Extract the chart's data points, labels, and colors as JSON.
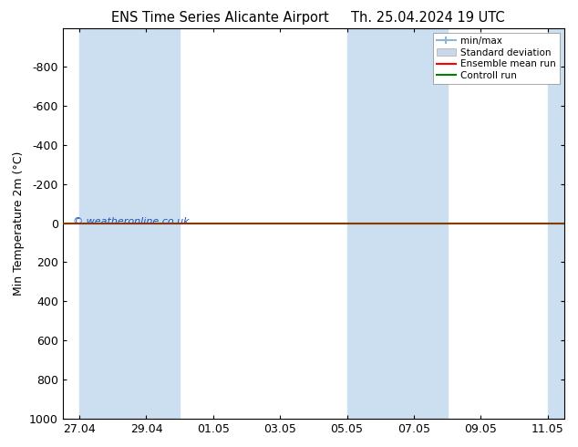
{
  "title_left": "ENS Time Series Alicante Airport",
  "title_right": "Th. 25.04.2024 19 UTC",
  "ylabel": "Min Temperature 2m (°C)",
  "ylim_top": -1000,
  "ylim_bottom": 1000,
  "yticks": [
    -800,
    -600,
    -400,
    -200,
    0,
    200,
    400,
    600,
    800,
    1000
  ],
  "x_tick_labels": [
    "27.04",
    "29.04",
    "01.05",
    "03.05",
    "05.05",
    "07.05",
    "09.05",
    "11.05"
  ],
  "x_tick_pos": [
    0,
    1,
    2,
    3,
    4,
    5,
    6,
    7
  ],
  "xlim": [
    -0.25,
    7.25
  ],
  "shaded_bands": [
    [
      0.0,
      0.5
    ],
    [
      1.0,
      1.5
    ],
    [
      4.0,
      4.5
    ],
    [
      5.0,
      5.5
    ],
    [
      7.0,
      7.25
    ]
  ],
  "ensemble_mean_y": 0,
  "control_run_y": 0,
  "watermark": "© weatheronline.co.uk",
  "legend_items": [
    "min/max",
    "Standard deviation",
    "Ensemble mean run",
    "Controll run"
  ],
  "minmax_color": "#ccdff0",
  "std_color": "#d8e8f4",
  "ensemble_color": "#ff0000",
  "control_color": "#008000",
  "background_color": "#ffffff",
  "plot_bg_color": "#ffffff",
  "shade_color": "#ccdff0",
  "font_color": "#000000",
  "watermark_color": "#1a4fb0"
}
